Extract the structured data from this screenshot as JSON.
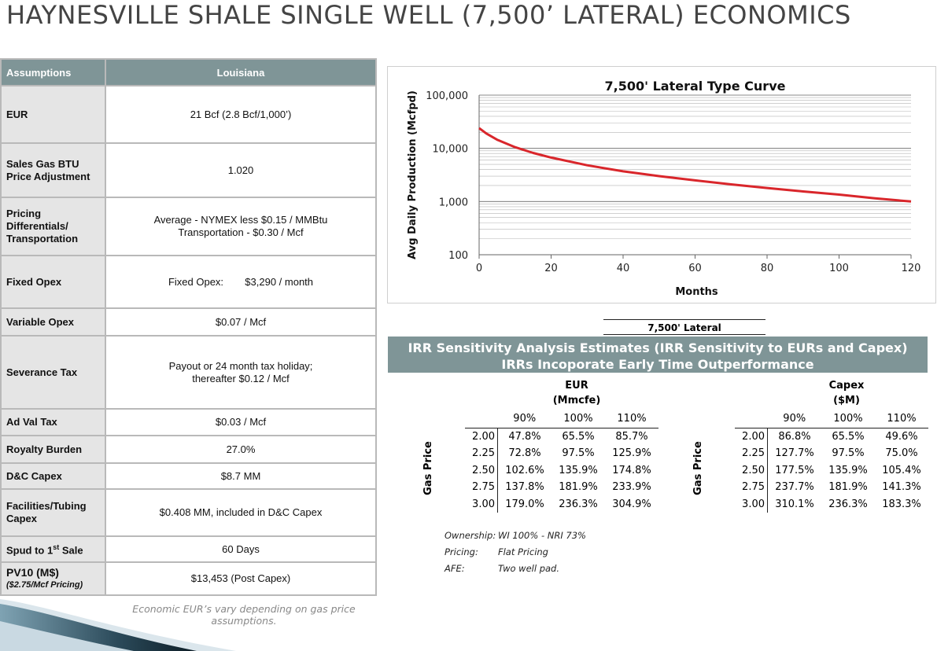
{
  "page_title": "HAYNESVILLE SHALE SINGLE WELL (7,500’ LATERAL) ECONOMICS",
  "assumptions": {
    "header": [
      "Assumptions",
      "Louisiana"
    ],
    "rows": [
      {
        "label": "EUR",
        "value": "21 Bcf (2.8 Bcf/1,000’)"
      },
      {
        "label": "Sales Gas BTU Price Adjustment",
        "value": "1.020"
      },
      {
        "label": "Pricing Differentials/ Transportation",
        "value": "Average - NYMEX less $0.15 / MMBtu",
        "value2": "Transportation - $0.30 / Mcf"
      },
      {
        "label": "Fixed Opex",
        "value": "Fixed Opex:",
        "value2": "$3,290 / month"
      },
      {
        "label": "Variable Opex",
        "value": "$0.07 / Mcf"
      },
      {
        "label": "Severance Tax",
        "value": "Payout or 24 month tax holiday;",
        "value2": "thereafter $0.12 / Mcf"
      },
      {
        "label": "Ad Val Tax",
        "value": "$0.03 / Mcf"
      },
      {
        "label": "Royalty Burden",
        "value": "27.0%"
      },
      {
        "label": "D&C Capex",
        "value": "$8.7 MM"
      },
      {
        "label": "Facilities/Tubing Capex",
        "value": "$0.408 MM, included in D&C Capex"
      },
      {
        "label": "Spud to 1",
        "label_sup": "st",
        "label_rest": " Sale",
        "value": "60 Days"
      },
      {
        "label": "PV10 (M$)",
        "sublabel": "($2.75/Mcf Pricing)",
        "value": "$13,453 (Post Capex)"
      }
    ],
    "footnote": "Economic EUR’s vary depending on gas price assumptions."
  },
  "chart_data": {
    "type": "line",
    "title": "7,500' Lateral Type Curve",
    "xlabel": "Months",
    "ylabel": "Avg Daily Production (Mcfpd)",
    "y_scale": "log",
    "xlim": [
      0,
      120
    ],
    "ylim": [
      100,
      100000
    ],
    "x_ticks": [
      0,
      20,
      40,
      60,
      80,
      100,
      120
    ],
    "y_ticks": [
      100,
      1000,
      10000,
      100000
    ],
    "y_tick_labels": [
      "100",
      "1,000",
      "10,000",
      "100,000"
    ],
    "grid": true,
    "series": [
      {
        "color": "#d9262b",
        "x": [
          0,
          2,
          5,
          10,
          15,
          20,
          30,
          40,
          50,
          60,
          70,
          80,
          90,
          100,
          110,
          120
        ],
        "y": [
          24000,
          19000,
          14500,
          10500,
          8200,
          6700,
          4800,
          3700,
          3000,
          2500,
          2100,
          1800,
          1550,
          1350,
          1150,
          1000
        ]
      }
    ]
  },
  "sensitivity": {
    "lateral_label": "7,500' Lateral",
    "banner_line1": "IRR Sensitivity Analysis Estimates (IRR Sensitivity to EURs and Capex)",
    "banner_line2": "IRRs Incoporate Early Time Outperformance",
    "row_axis_label": "Gas Price",
    "eur": {
      "title": "EUR",
      "unit": "(Mmcfe)",
      "cols": [
        "90%",
        "100%",
        "110%"
      ],
      "rows": [
        {
          "price": "2.00",
          "vals": [
            "47.8%",
            "65.5%",
            "85.7%"
          ]
        },
        {
          "price": "2.25",
          "vals": [
            "72.8%",
            "97.5%",
            "125.9%"
          ]
        },
        {
          "price": "2.50",
          "vals": [
            "102.6%",
            "135.9%",
            "174.8%"
          ]
        },
        {
          "price": "2.75",
          "vals": [
            "137.8%",
            "181.9%",
            "233.9%"
          ]
        },
        {
          "price": "3.00",
          "vals": [
            "179.0%",
            "236.3%",
            "304.9%"
          ]
        }
      ]
    },
    "capex": {
      "title": "Capex",
      "unit": "($M)",
      "cols": [
        "90%",
        "100%",
        "110%"
      ],
      "rows": [
        {
          "price": "2.00",
          "vals": [
            "86.8%",
            "65.5%",
            "49.6%"
          ]
        },
        {
          "price": "2.25",
          "vals": [
            "127.7%",
            "97.5%",
            "75.0%"
          ]
        },
        {
          "price": "2.50",
          "vals": [
            "177.5%",
            "135.9%",
            "105.4%"
          ]
        },
        {
          "price": "2.75",
          "vals": [
            "237.7%",
            "181.9%",
            "141.3%"
          ]
        },
        {
          "price": "3.00",
          "vals": [
            "310.1%",
            "236.3%",
            "183.3%"
          ]
        }
      ]
    },
    "notes": [
      {
        "key": "Ownership:",
        "value": "WI 100% - NRI 73%"
      },
      {
        "key": "Pricing:",
        "value": "Flat Pricing"
      },
      {
        "key": "AFE:",
        "value": "Two well pad."
      }
    ]
  }
}
